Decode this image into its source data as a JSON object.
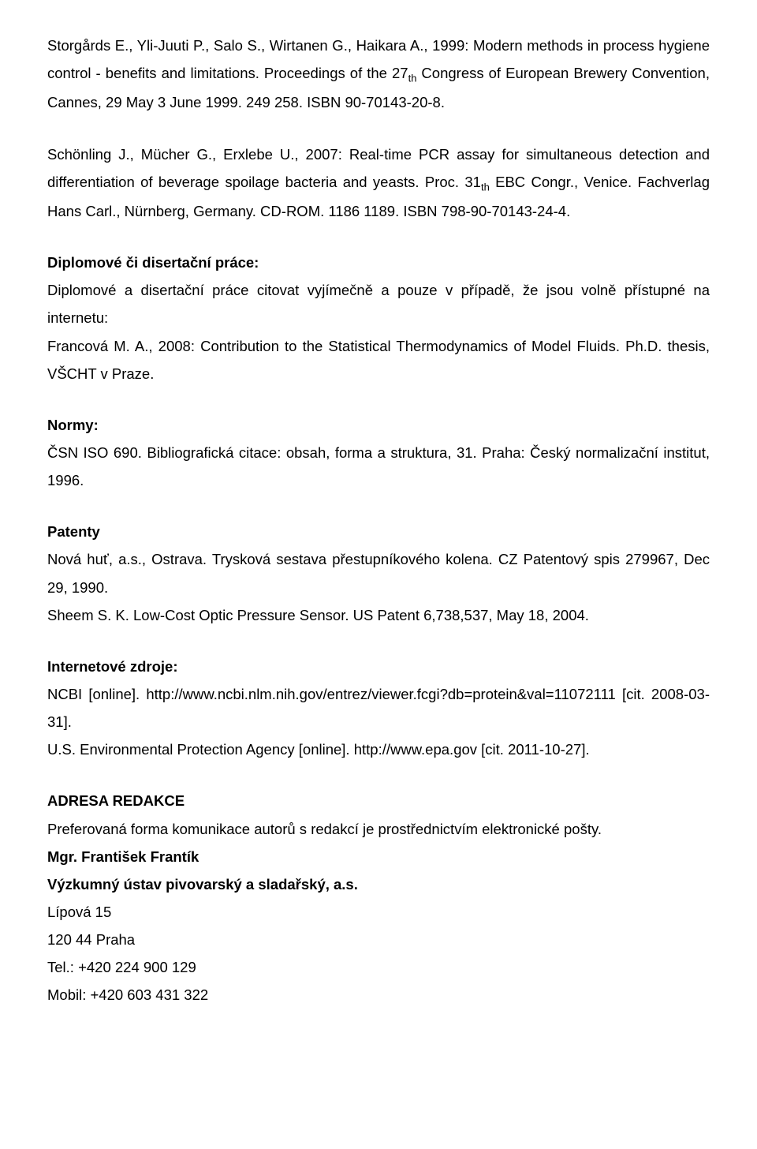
{
  "ref1": {
    "text_a": "Storgårds E., Yli-Juuti P., Salo S., Wirtanen G., Haikara A., 1999: Modern methods in process hygiene control - benefits and limitations. Proceedings of the 27",
    "th1": "th",
    "text_b": " Congress of European Brewery Convention, Cannes, 29 May 3 June 1999. 249 258. ISBN 90-70143-20-8."
  },
  "ref2": {
    "text_a": "Schönling J., Mücher G., Erxlebe U., 2007: Real-time PCR assay for simultaneous detection and differentiation of beverage spoilage bacteria and yeasts. Proc. 31",
    "th1": "th",
    "text_b": " EBC Congr., Venice. Fachverlag Hans Carl., Nürnberg, Germany. CD-ROM. 1186 1189. ISBN 798-90-70143-24-4."
  },
  "theses": {
    "heading": "Diplomové či disertační práce:",
    "line1": "Diplomové a disertační práce citovat vyjímečně a pouze v případě, že jsou volně přístupné na internetu:",
    "line2": "Francová M. A., 2008: Contribution to the Statistical Thermodynamics of Model Fluids. Ph.D. thesis, VŠCHT v Praze."
  },
  "norms": {
    "heading": "Normy:",
    "line1": "ČSN ISO 690. Bibliografická citace: obsah, forma a struktura, 31. Praha: Český normalizační institut, 1996."
  },
  "patents": {
    "heading": "Patenty",
    "line1": "Nová huť, a.s., Ostrava. Trysková sestava přestupníkového kolena. CZ Patentový spis 279967, Dec 29, 1990.",
    "line2": "Sheem S. K. Low-Cost Optic Pressure Sensor. US Patent 6,738,537, May 18, 2004."
  },
  "internet": {
    "heading": "Internetové zdroje:",
    "line1": "NCBI [online]. http://www.ncbi.nlm.nih.gov/entrez/viewer.fcgi?db=protein&val=11072111 [cit. 2008-03-31].",
    "line2": "U.S. Environmental Protection Agency [online]. http://www.epa.gov [cit. 2011-10-27]."
  },
  "address": {
    "heading": "ADRESA REDAKCE",
    "line1": "Preferovaná forma komunikace autorů s redakcí je prostřednictvím elektronické pošty.",
    "name": "Mgr. František Frantík",
    "org": "Výzkumný ústav pivovarský a sladařský, a.s.",
    "street": "Lípová 15",
    "city": "120 44 Praha",
    "tel": "Tel.: +420 224 900 129",
    "mobile": "Mobil: +420 603 431 322"
  }
}
